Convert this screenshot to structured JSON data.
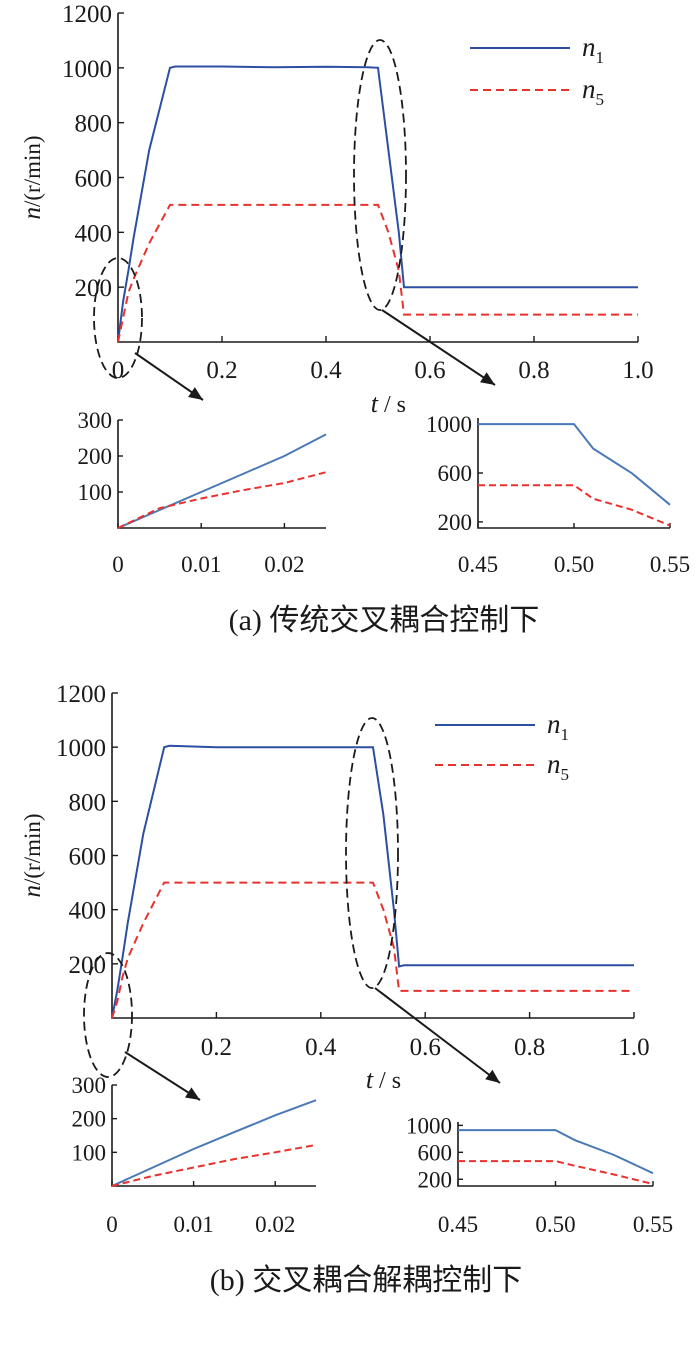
{
  "colors": {
    "n1": "#2c4fa3",
    "n1_inset": "#4a7ab5",
    "n5": "#e8322e",
    "annotation": "#1a1a1a"
  },
  "chart_data": [
    {
      "type": "line",
      "panel": "a",
      "title": "",
      "xlabel_var": "t",
      "xlabel_unit": " / s",
      "ylabel_var": "n",
      "ylabel_unit": "/(r/min)",
      "xlim": [
        0,
        1.0
      ],
      "ylim": [
        0,
        1200
      ],
      "xticks": [
        "0",
        "0.2",
        "0.4",
        "0.6",
        "0.8",
        "1.0"
      ],
      "yticks": [
        "200",
        "400",
        "600",
        "800",
        "1000",
        "1200"
      ],
      "legend_position": "top-right",
      "series": [
        {
          "name": "n",
          "subscript": "1",
          "style": "solid",
          "x": [
            0,
            0.01,
            0.02,
            0.03,
            0.06,
            0.1,
            0.11,
            0.2,
            0.3,
            0.4,
            0.48,
            0.5,
            0.52,
            0.54,
            0.55,
            0.56,
            0.8,
            1.0
          ],
          "y": [
            0,
            150,
            260,
            380,
            700,
            1000,
            1005,
            1005,
            1002,
            1004,
            1002,
            1000,
            700,
            400,
            200,
            200,
            200,
            200
          ]
        },
        {
          "name": "n",
          "subscript": "5",
          "style": "dashed",
          "x": [
            0,
            0.01,
            0.02,
            0.03,
            0.06,
            0.1,
            0.11,
            0.3,
            0.5,
            0.52,
            0.54,
            0.55,
            0.56,
            0.8,
            1.0
          ],
          "y": [
            0,
            90,
            180,
            230,
            360,
            500,
            500,
            500,
            500,
            400,
            260,
            100,
            100,
            100,
            100
          ]
        }
      ],
      "insets": [
        {
          "xlim": [
            0,
            0.025
          ],
          "ylim": [
            0,
            300
          ],
          "xticks": [
            "0",
            "0.01",
            "0.02"
          ],
          "yticks": [
            "100",
            "200",
            "300"
          ],
          "series": [
            {
              "style": "solid",
              "x": [
                0,
                0.005,
                0.01,
                0.015,
                0.02,
                0.025
              ],
              "y": [
                0,
                50,
                100,
                150,
                200,
                260
              ]
            },
            {
              "style": "dashed",
              "x": [
                0,
                0.005,
                0.01,
                0.015,
                0.02,
                0.025
              ],
              "y": [
                0,
                55,
                82,
                105,
                125,
                155
              ]
            }
          ]
        },
        {
          "xlim": [
            0.45,
            0.55
          ],
          "ylim": [
            150,
            1050
          ],
          "xticks": [
            "0.45",
            "0.50",
            "0.55"
          ],
          "yticks": [
            "200",
            "600",
            "1000"
          ],
          "series": [
            {
              "style": "solid",
              "x": [
                0.45,
                0.5,
                0.51,
                0.53,
                0.55
              ],
              "y": [
                1000,
                1000,
                800,
                600,
                340
              ]
            },
            {
              "style": "dashed",
              "x": [
                0.45,
                0.5,
                0.51,
                0.53,
                0.55
              ],
              "y": [
                500,
                500,
                390,
                300,
                170
              ]
            }
          ]
        }
      ],
      "caption": "(a)  传统交叉耦合控制下"
    },
    {
      "type": "line",
      "panel": "b",
      "title": "",
      "xlabel_var": "t",
      "xlabel_unit": " / s",
      "ylabel_var": "n",
      "ylabel_unit": "/(r/min)",
      "xlim": [
        0,
        1.0
      ],
      "ylim": [
        0,
        1200
      ],
      "xticks": [
        "0.2",
        "0.4",
        "0.6",
        "0.8",
        "1.0"
      ],
      "yticks": [
        "200",
        "400",
        "600",
        "800",
        "1000",
        "1200"
      ],
      "legend_position": "top-right",
      "series": [
        {
          "name": "n",
          "subscript": "1",
          "style": "solid",
          "x": [
            0,
            0.01,
            0.02,
            0.03,
            0.06,
            0.1,
            0.11,
            0.2,
            0.3,
            0.49,
            0.5,
            0.52,
            0.54,
            0.55,
            0.56,
            0.8,
            1.0
          ],
          "y": [
            0,
            100,
            220,
            350,
            680,
            1000,
            1005,
            1000,
            1000,
            1000,
            1000,
            750,
            400,
            190,
            195,
            195,
            195
          ]
        },
        {
          "name": "n",
          "subscript": "5",
          "style": "dashed",
          "x": [
            0,
            0.01,
            0.02,
            0.03,
            0.06,
            0.1,
            0.11,
            0.3,
            0.5,
            0.52,
            0.54,
            0.55,
            0.56,
            0.8,
            1.0
          ],
          "y": [
            0,
            60,
            150,
            220,
            350,
            500,
            500,
            500,
            500,
            400,
            260,
            100,
            100,
            100,
            100
          ]
        }
      ],
      "insets": [
        {
          "xlim": [
            0,
            0.025
          ],
          "ylim": [
            0,
            300
          ],
          "xticks": [
            "0",
            "0.01",
            "0.02"
          ],
          "yticks": [
            "100",
            "200",
            "300"
          ],
          "series": [
            {
              "style": "solid",
              "x": [
                0,
                0.005,
                0.01,
                0.015,
                0.02,
                0.025
              ],
              "y": [
                0,
                55,
                110,
                160,
                210,
                255
              ]
            },
            {
              "style": "dashed",
              "x": [
                0,
                0.005,
                0.01,
                0.015,
                0.02,
                0.025
              ],
              "y": [
                0,
                30,
                55,
                80,
                100,
                122
              ]
            }
          ]
        },
        {
          "xlim": [
            0.45,
            0.55
          ],
          "ylim": [
            100,
            1050
          ],
          "xticks": [
            "0.45",
            "0.50",
            "0.55"
          ],
          "yticks": [
            "200",
            "600",
            "1000"
          ],
          "series": [
            {
              "style": "solid",
              "x": [
                0.45,
                0.5,
                0.51,
                0.53,
                0.55
              ],
              "y": [
                930,
                930,
                780,
                560,
                290
              ]
            },
            {
              "style": "dashed",
              "x": [
                0.45,
                0.5,
                0.51,
                0.53,
                0.55
              ],
              "y": [
                470,
                470,
                400,
                270,
                130
              ]
            }
          ]
        }
      ],
      "caption": "(b)  交叉耦合解耦控制下"
    }
  ]
}
